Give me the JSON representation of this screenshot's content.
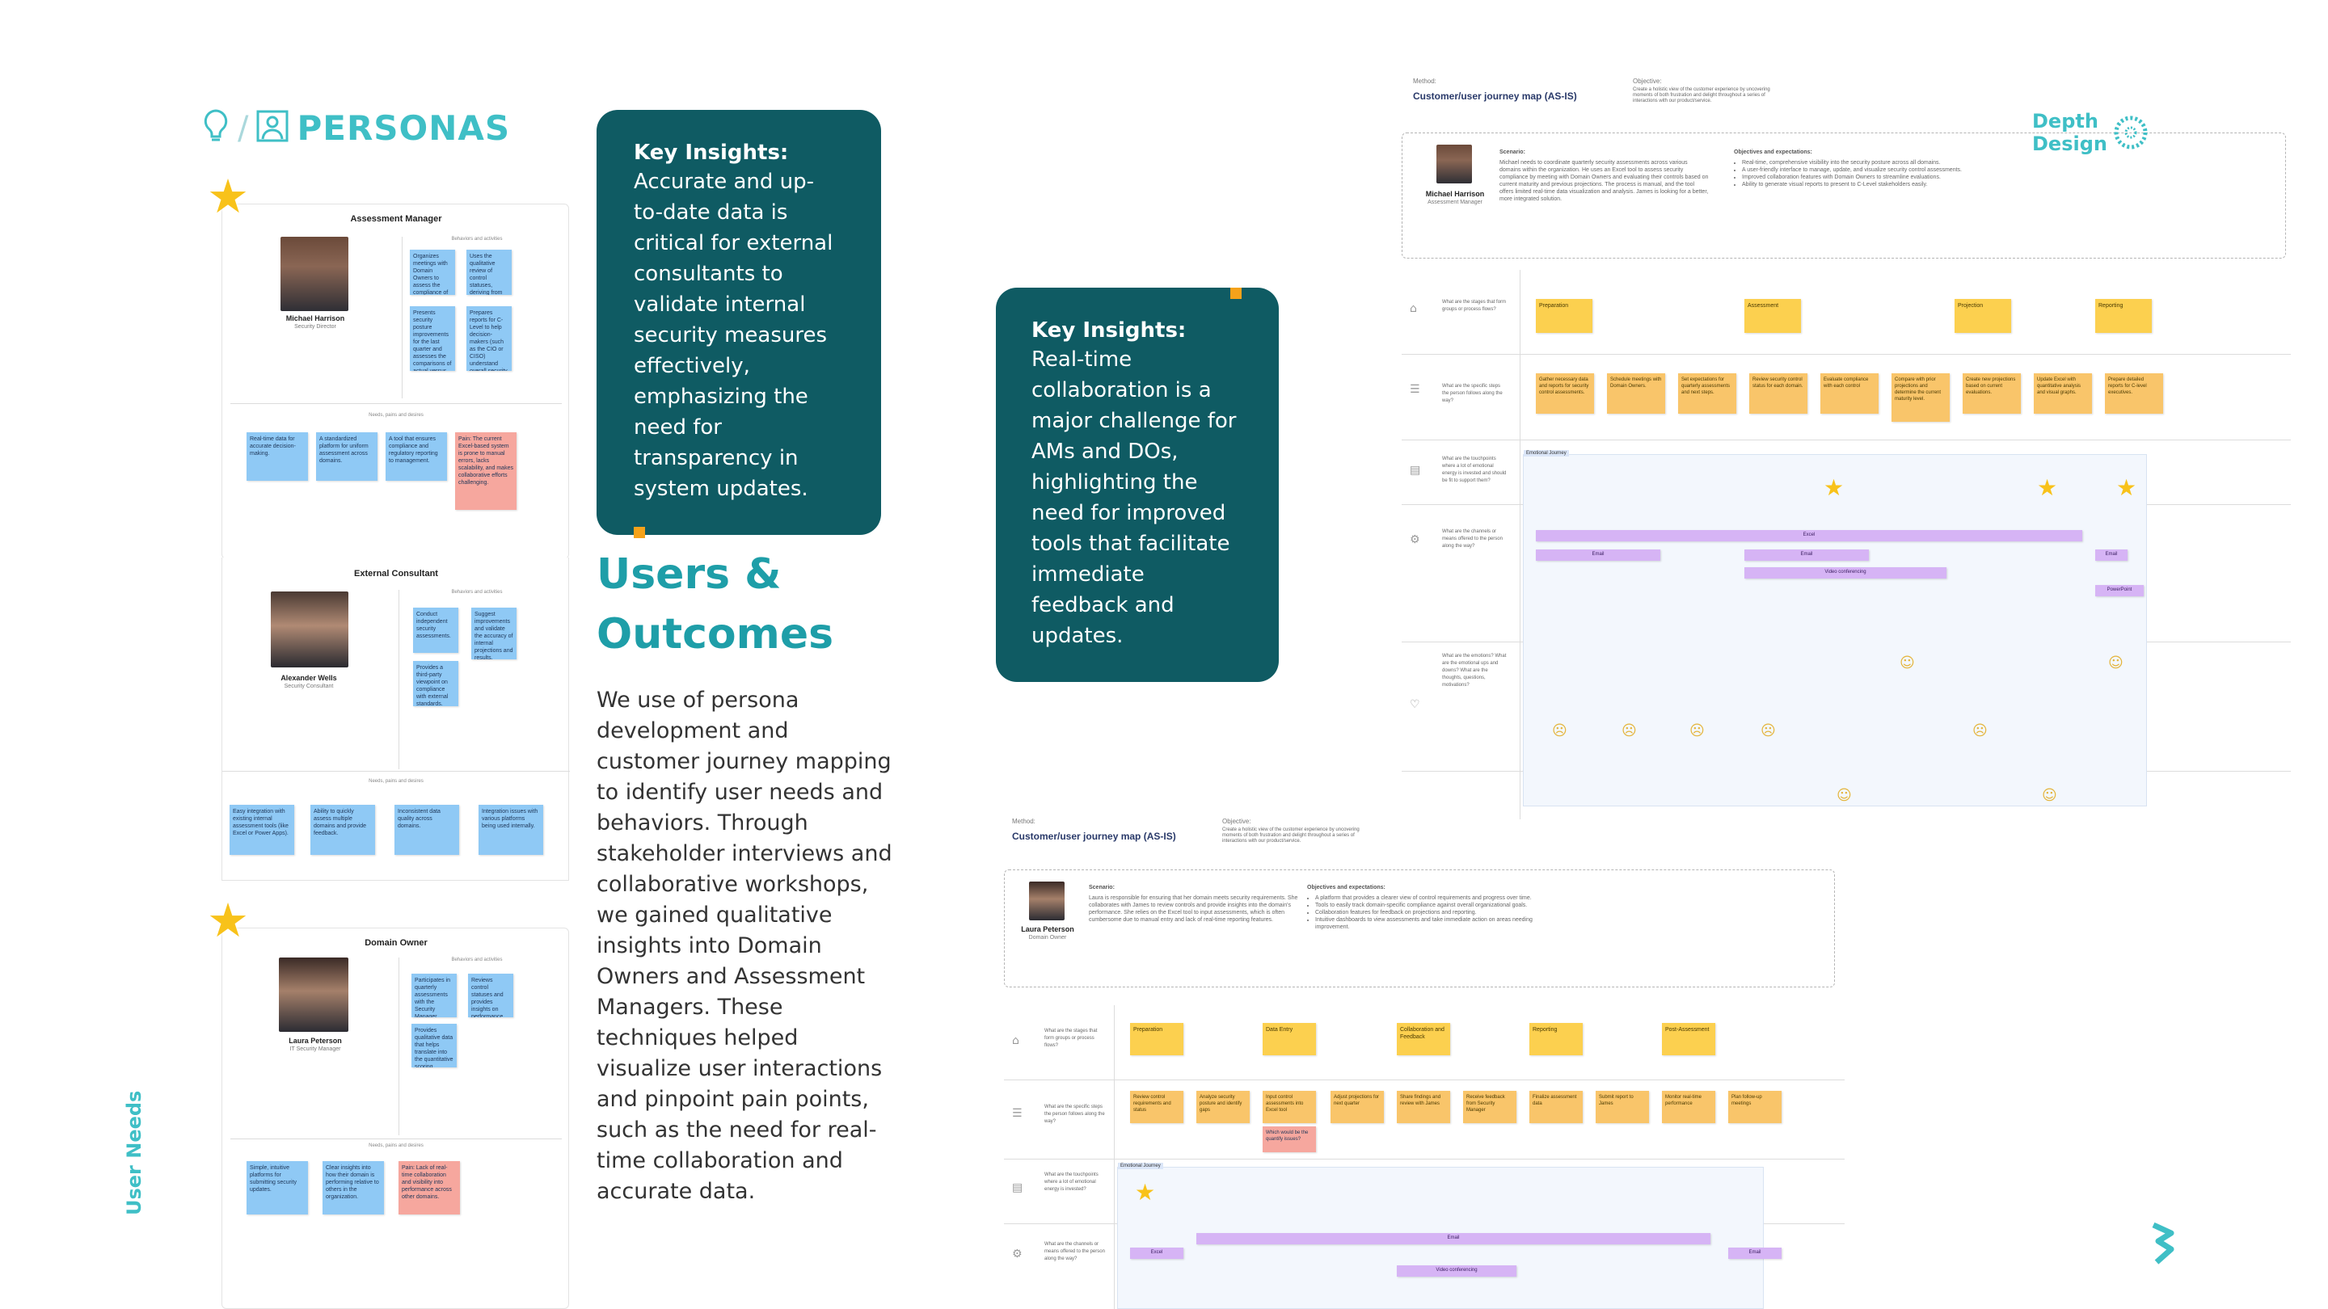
{
  "header": {
    "title": "PERSONAS",
    "separator": "/"
  },
  "side_label": "User Needs",
  "personas": [
    {
      "card_title": "Assessment Manager",
      "name": "Michael Harrison",
      "role": "Security Director",
      "behaviors_label": "Behaviors and activities",
      "needs_label": "Needs, pains and desires",
      "behaviors": [
        "Organizes meetings with Domain Owners to assess the compliance of each security control.",
        "Uses the qualitative review of control statuses, deriving from the quantitative insights.",
        "Presents security posture improvements for the last quarter and assesses the comparisons of actual versus projected performance.",
        "Prepares reports for C-Level to help decision-makers (such as the CIO or CISO) understand overall security health and compliance."
      ],
      "needs": [
        {
          "text": "Real-time data for accurate decision-making.",
          "color": "blue"
        },
        {
          "text": "A standardized platform for uniform assessment across domains.",
          "color": "blue"
        },
        {
          "text": "A tool that ensures compliance and regulatory reporting to management.",
          "color": "blue"
        },
        {
          "text": "Pain: The current Excel-based system is prone to manual errors, lacks scalability, and makes collaborative efforts challenging.",
          "color": "red"
        }
      ]
    },
    {
      "card_title": "External Consultant",
      "name": "Alexander Wells",
      "role": "Security Consultant",
      "behaviors_label": "Behaviors and activities",
      "needs_label": "Needs, pains and desires",
      "behaviors": [
        "Conduct independent security assessments.",
        "Suggest improvements and validate the accuracy of internal projections and results.",
        "Provides a third-party viewpoint on compliance with external standards."
      ],
      "needs": [
        {
          "text": "Easy integration with existing internal assessment tools (like Excel or Power Apps).",
          "color": "blue"
        },
        {
          "text": "Ability to quickly assess multiple domains and provide feedback.",
          "color": "blue"
        },
        {
          "text": "Inconsistent data quality across domains.",
          "color": "blue"
        },
        {
          "text": "Integration issues with various platforms being used internally.",
          "color": "blue"
        }
      ]
    },
    {
      "card_title": "Domain Owner",
      "name": "Laura Peterson",
      "role": "IT Security Manager",
      "behaviors_label": "Behaviors and activities",
      "needs_label": "Needs, pains and desires",
      "behaviors": [
        "Participates in quarterly assessments with the Security Manager.",
        "Reviews control statuses and provides insights on performance and improvements.",
        "Provides qualitative data that helps translate into the quantitative scoring process."
      ],
      "needs": [
        {
          "text": "Simple, intuitive platforms for submitting security updates.",
          "color": "blue"
        },
        {
          "text": "Clear insights into how their domain is performing relative to others in the organization.",
          "color": "blue"
        },
        {
          "text": "Pain: Lack of real-time collaboration and visibility into performance across other domains.",
          "color": "red"
        }
      ]
    }
  ],
  "insight_1": {
    "heading": "Key Insights:",
    "lines": [
      "Accurate and up-",
      "to-date data is",
      "critical for external",
      "consultants to",
      "validate internal",
      "security measures",
      "effectively,",
      "emphasizing the",
      "need for",
      "transparency in",
      "system updates."
    ]
  },
  "insight_2": {
    "heading": "Key Insights:",
    "lines": [
      "Real-time",
      "collaboration is a",
      "major challenge for",
      "AMs and DOs,",
      "highlighting the",
      "need for improved",
      "tools that facilitate",
      "immediate",
      "feedback and",
      "updates."
    ]
  },
  "outcomes": {
    "heading_1": "Users &",
    "heading_2": "Outcomes",
    "body_lines": [
      "We use of persona",
      "development and",
      "customer journey mapping",
      "to identify user needs and",
      "behaviors. Through",
      "stakeholder interviews and",
      "collaborative workshops,",
      "we gained qualitative",
      "insights into Domain",
      "Owners and Assessment",
      "Managers. These",
      "techniques helped",
      "visualize user interactions",
      "and pinpoint pain points,",
      "such as the need for real-",
      "time collaboration and",
      "accurate data."
    ]
  },
  "logo": {
    "line1": "Depth",
    "line2": "Design"
  },
  "journey_top": {
    "method_label": "Method:",
    "method": "Customer/user journey map (AS-IS)",
    "objective_label": "Objective:",
    "objective": "Create a holistic view of the customer experience by uncovering moments of both frustration and delight throughout a series of interactions with our product/service.",
    "name": "Michael Harrison",
    "role": "Assessment Manager",
    "scenario_label": "Scenario:",
    "scenario": "Michael needs to coordinate quarterly security assessments across various domains within the organization. He uses an Excel tool to assess security compliance by meeting with Domain Owners and evaluating their controls based on current maturity and previous projections. The process is manual, and the tool offers limited real-time data visualization and analysis. James is looking for a better, more integrated solution.",
    "expectations_label": "Objectives and expectations:",
    "expectations": [
      "Real-time, comprehensive visibility into the security posture across all domains.",
      "A user-friendly interface to manage, update, and visualize security control assessments.",
      "Improved collaboration features with Domain Owners to streamline evaluations.",
      "Ability to generate visual reports to present to C-Level stakeholders easily."
    ],
    "stages": [
      "Preparation",
      "Assessment",
      "Projection",
      "Reporting"
    ],
    "steps": [
      "Gather necessary data and reports for security control assessments.",
      "Schedule meetings with Domain Owners.",
      "Set expectations for quarterly assessments and next steps.",
      "Review security control status for each domain.",
      "Evaluate compliance with each control",
      "Compare with prior projections and determine the current maturity level.",
      "Create new projections based on current evaluations.",
      "Update Excel with quantitative analysis and visual graphs.",
      "Prepare detailed reports for C-level executives."
    ],
    "emotional_label": "Emotional Journey",
    "channels": [
      "Excel",
      "Email",
      "Email",
      "Email",
      "Video conferencing",
      "PowerPoint"
    ],
    "row_questions": [
      "What are the stages that form groups or process flows?",
      "What are the specific steps the person follows along the way?",
      "What are the touchpoints where a lot of emotional energy is invested and should be fit to support them?",
      "What are the channels or means offered to the person along the way?",
      "What are the emotions? What are the emotional ups and downs? What are the thoughts, questions, motivations?"
    ]
  },
  "journey_bottom": {
    "method_label": "Method:",
    "method": "Customer/user journey map (AS-IS)",
    "objective_label": "Objective:",
    "objective": "Create a holistic view of the customer experience by uncovering moments of both frustration and delight throughout a series of interactions with our product/service.",
    "name": "Laura Peterson",
    "role": "Domain Owner",
    "scenario_label": "Scenario:",
    "scenario": "Laura is responsible for ensuring that her domain meets security requirements. She collaborates with James to review controls and provide insights into the domain's performance. She relies on the Excel tool to input assessments, which is often cumbersome due to manual entry and lack of real-time reporting features.",
    "expectations_label": "Objectives and expectations:",
    "expectations": [
      "A platform that provides a clearer view of control requirements and progress over time.",
      "Tools to easily track domain-specific compliance against overall organizational goals.",
      "Collaboration features for feedback on projections and reporting.",
      "Intuitive dashboards to view assessments and take immediate action on areas needing improvement."
    ],
    "stages": [
      "Preparation",
      "Data Entry",
      "Collaboration and Feedback",
      "Reporting",
      "Post-Assessment"
    ],
    "steps": [
      "Review control requirements and status",
      "Analyze security posture and identify gaps",
      "Input control assessments into Excel tool",
      "Adjust projections for next quarter",
      "Share findings and review with James",
      "Receive feedback from Security Manager",
      "Finalize assessment data",
      "Submit report to James",
      "Monitor real-time performance",
      "Plan follow-up meetings"
    ],
    "extra_step": "Which would be the quantify issues?",
    "emotional_label": "Emotional Journey",
    "channels": [
      "Email",
      "Excel",
      "Email",
      "Video conferencing"
    ],
    "row_questions": [
      "What are the stages that form groups or process flows?",
      "What are the specific steps the person follows along the way?",
      "What are the touchpoints where a lot of emotional energy is invested?",
      "What are the channels or means offered to the person along the way?"
    ]
  }
}
